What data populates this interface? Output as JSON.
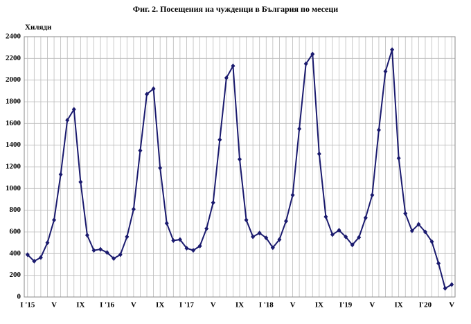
{
  "chart_data": {
    "type": "line",
    "title": "Фиг. 2. Посещения на чужденци в България по месеци",
    "ylabel": "Хиляди",
    "categories": [
      "I '15",
      null,
      null,
      null,
      "V",
      null,
      null,
      null,
      "IX",
      null,
      null,
      null,
      "I '16",
      null,
      null,
      null,
      "V",
      null,
      null,
      null,
      "IX",
      null,
      null,
      null,
      "I '17",
      null,
      null,
      null,
      "V",
      null,
      null,
      null,
      "IX",
      null,
      null,
      null,
      "I '18",
      null,
      null,
      null,
      "V",
      null,
      null,
      null,
      "IX",
      null,
      null,
      null,
      "I'19",
      null,
      null,
      null,
      "V",
      null,
      null,
      null,
      "IX",
      null,
      null,
      null,
      "I'20",
      null,
      null,
      null,
      "V"
    ],
    "series": [
      {
        "color": "#1a1a6e",
        "values": [
          390,
          330,
          365,
          500,
          710,
          1130,
          1630,
          1730,
          1060,
          570,
          430,
          440,
          410,
          355,
          390,
          555,
          810,
          1350,
          1870,
          1920,
          1190,
          680,
          520,
          530,
          450,
          430,
          470,
          630,
          870,
          1450,
          2020,
          2130,
          1270,
          710,
          555,
          590,
          545,
          455,
          530,
          700,
          940,
          1550,
          2150,
          2240,
          1320,
          740,
          575,
          615,
          555,
          480,
          550,
          730,
          940,
          1540,
          2080,
          2280,
          1280,
          770,
          610,
          670,
          600,
          510,
          310,
          80,
          115
        ]
      }
    ],
    "ylim": [
      0,
      2400
    ],
    "yticks": [
      0,
      200,
      400,
      600,
      800,
      1000,
      1200,
      1400,
      1600,
      1800,
      2000,
      2200,
      2400
    ],
    "grid": true
  }
}
